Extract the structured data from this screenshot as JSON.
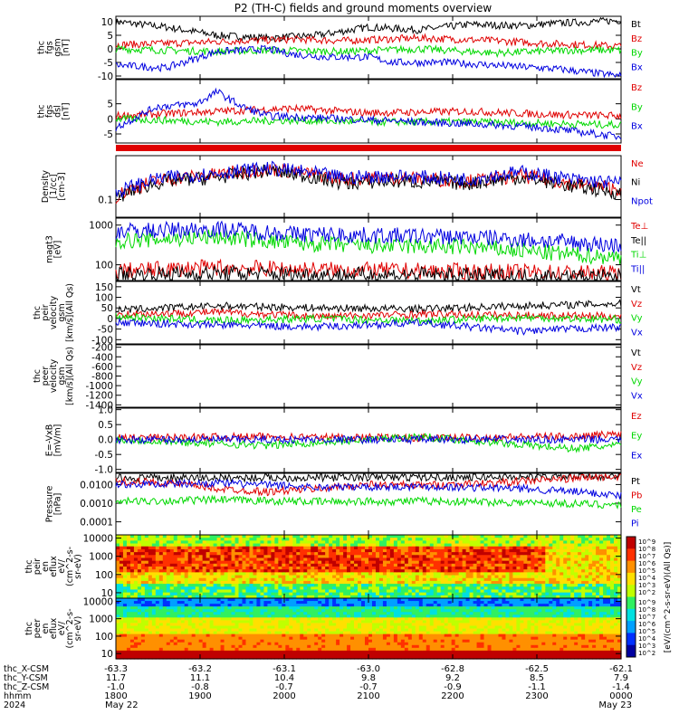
{
  "title": "P2 (TH-C) fields and ground moments overview",
  "colors": {
    "black": "#000000",
    "red": "#e00000",
    "green": "#00d800",
    "blue": "#0000e0"
  },
  "chart_data": [
    {
      "type": "line",
      "id": "fgs",
      "ylabel": [
        "thc",
        "fgs",
        "gsm",
        "[nT]"
      ],
      "yticks": [
        "10",
        "5",
        "0",
        "-5",
        "-10"
      ],
      "ylim": [
        -11,
        12
      ],
      "series": [
        {
          "name": "Bt",
          "color": "black",
          "profile": [
            [
              0,
              10
            ],
            [
              0.1,
              8
            ],
            [
              0.2,
              5
            ],
            [
              0.3,
              4
            ],
            [
              0.4,
              5
            ],
            [
              0.5,
              8
            ],
            [
              0.6,
              7
            ],
            [
              0.7,
              9
            ],
            [
              0.8,
              8.5
            ],
            [
              0.88,
              9.5
            ],
            [
              1,
              10.5
            ]
          ]
        },
        {
          "name": "Bz",
          "color": "red",
          "profile": [
            [
              0,
              1.5
            ],
            [
              0.1,
              2
            ],
            [
              0.25,
              3
            ],
            [
              0.35,
              3.5
            ],
            [
              0.45,
              3
            ],
            [
              0.6,
              4
            ],
            [
              0.75,
              3
            ],
            [
              0.85,
              2
            ],
            [
              1,
              1
            ]
          ]
        },
        {
          "name": "By",
          "color": "green",
          "profile": [
            [
              0,
              0
            ],
            [
              0.2,
              -1
            ],
            [
              0.3,
              -0.5
            ],
            [
              0.45,
              -1
            ],
            [
              0.6,
              0
            ],
            [
              0.75,
              -1.5
            ],
            [
              0.9,
              -0.5
            ],
            [
              1,
              -0.5
            ]
          ]
        },
        {
          "name": "Bx",
          "color": "blue",
          "profile": [
            [
              0,
              -6
            ],
            [
              0.1,
              -7
            ],
            [
              0.2,
              -1
            ],
            [
              0.3,
              0
            ],
            [
              0.35,
              -2
            ],
            [
              0.42,
              -3
            ],
            [
              0.5,
              -3
            ],
            [
              0.55,
              -5
            ],
            [
              0.65,
              -5
            ],
            [
              0.75,
              -6
            ],
            [
              0.88,
              -7.5
            ],
            [
              1,
              -10
            ]
          ]
        }
      ]
    },
    {
      "type": "line",
      "id": "fgs_dsl",
      "ylabel": [
        "thc",
        "fgs",
        "dsl",
        "[nT]"
      ],
      "yticks": [
        "5",
        "0",
        "-5"
      ],
      "ylim": [
        -8,
        13
      ],
      "series": [
        {
          "name": "Bz",
          "color": "red",
          "profile": [
            [
              0,
              1
            ],
            [
              0.2,
              2.5
            ],
            [
              0.35,
              3.5
            ],
            [
              0.5,
              2
            ],
            [
              0.7,
              2.5
            ],
            [
              0.85,
              1.5
            ],
            [
              1,
              1
            ]
          ]
        },
        {
          "name": "By",
          "color": "green",
          "profile": [
            [
              0,
              0
            ],
            [
              0.2,
              -1
            ],
            [
              0.35,
              -0.5
            ],
            [
              0.5,
              -1
            ],
            [
              0.7,
              -1
            ],
            [
              0.85,
              -1.5
            ],
            [
              1,
              -2
            ]
          ]
        },
        {
          "name": "Bx",
          "color": "blue",
          "profile": [
            [
              0,
              -3
            ],
            [
              0.08,
              4
            ],
            [
              0.16,
              5
            ],
            [
              0.2,
              9
            ],
            [
              0.25,
              4
            ],
            [
              0.3,
              1
            ],
            [
              0.45,
              0
            ],
            [
              0.6,
              -1
            ],
            [
              0.75,
              -2
            ],
            [
              0.85,
              -3
            ],
            [
              1,
              -6
            ]
          ]
        }
      ]
    },
    {
      "type": "line",
      "id": "density",
      "ylabel": [
        "Density",
        "[1/cc]",
        "[cm-3]"
      ],
      "yticks": [
        "0.1"
      ],
      "log": true,
      "ylim": [
        0.03,
        2
      ],
      "series": [
        {
          "name": "Ne",
          "color": "red",
          "profile": [
            [
              0,
              0.12
            ],
            [
              0.1,
              0.4
            ],
            [
              0.2,
              0.55
            ],
            [
              0.3,
              0.8
            ],
            [
              0.45,
              0.4
            ],
            [
              0.55,
              0.45
            ],
            [
              0.7,
              0.35
            ],
            [
              0.8,
              0.5
            ],
            [
              0.9,
              0.3
            ],
            [
              1,
              0.2
            ]
          ]
        },
        {
          "name": "Ni",
          "color": "black",
          "profile": [
            [
              0,
              0.1
            ],
            [
              0.1,
              0.35
            ],
            [
              0.2,
              0.45
            ],
            [
              0.3,
              0.7
            ],
            [
              0.45,
              0.3
            ],
            [
              0.55,
              0.35
            ],
            [
              0.7,
              0.3
            ],
            [
              0.8,
              0.45
            ],
            [
              0.9,
              0.25
            ],
            [
              1,
              0.15
            ]
          ]
        },
        {
          "name": "Npot",
          "color": "blue",
          "profile": [
            [
              0,
              0.15
            ],
            [
              0.1,
              0.45
            ],
            [
              0.2,
              0.6
            ],
            [
              0.3,
              0.85
            ],
            [
              0.45,
              0.45
            ],
            [
              0.55,
              0.5
            ],
            [
              0.7,
              0.4
            ],
            [
              0.8,
              0.65
            ],
            [
              0.9,
              0.4
            ],
            [
              1,
              0.3
            ]
          ]
        }
      ]
    },
    {
      "type": "line",
      "id": "temp",
      "ylabel": [
        "magt3",
        "[eV]"
      ],
      "yticks": [
        "1000",
        "100"
      ],
      "log": true,
      "ylim": [
        40,
        1500
      ],
      "series": [
        {
          "name": "Te⊥",
          "color": "red",
          "profile": [
            [
              0,
              70
            ],
            [
              0.2,
              85
            ],
            [
              0.4,
              75
            ],
            [
              0.6,
              70
            ],
            [
              0.8,
              65
            ],
            [
              1,
              60
            ]
          ]
        },
        {
          "name": "Te||",
          "color": "black",
          "profile": [
            [
              0,
              55
            ],
            [
              0.2,
              60
            ],
            [
              0.4,
              55
            ],
            [
              0.6,
              55
            ],
            [
              0.8,
              50
            ],
            [
              1,
              48
            ]
          ]
        },
        {
          "name": "Ti⊥",
          "color": "green",
          "profile": [
            [
              0,
              400
            ],
            [
              0.2,
              500
            ],
            [
              0.35,
              350
            ],
            [
              0.5,
              300
            ],
            [
              0.7,
              280
            ],
            [
              0.85,
              200
            ],
            [
              1,
              150
            ]
          ]
        },
        {
          "name": "Ti||",
          "color": "blue",
          "profile": [
            [
              0,
              700
            ],
            [
              0.2,
              800
            ],
            [
              0.35,
              600
            ],
            [
              0.5,
              550
            ],
            [
              0.7,
              500
            ],
            [
              0.85,
              400
            ],
            [
              1,
              300
            ]
          ]
        }
      ]
    },
    {
      "type": "line",
      "id": "peir_v",
      "ylabel": [
        "thc",
        "peir",
        "velocity",
        "gsm",
        "[km/s](All Qs)"
      ],
      "yticks": [
        "150",
        "100",
        "50",
        "0",
        "-50",
        "-100"
      ],
      "ylim": [
        -120,
        175
      ],
      "series": [
        {
          "name": "Vt",
          "color": "black",
          "profile": [
            [
              0,
              40
            ],
            [
              0.2,
              60
            ],
            [
              0.4,
              50
            ],
            [
              0.6,
              45
            ],
            [
              0.8,
              60
            ],
            [
              1,
              70
            ]
          ]
        },
        {
          "name": "Vz",
          "color": "red",
          "profile": [
            [
              0,
              20
            ],
            [
              0.2,
              30
            ],
            [
              0.4,
              10
            ],
            [
              0.6,
              20
            ],
            [
              0.8,
              15
            ],
            [
              1,
              10
            ]
          ]
        },
        {
          "name": "Vy",
          "color": "green",
          "profile": [
            [
              0,
              10
            ],
            [
              0.2,
              -10
            ],
            [
              0.4,
              0
            ],
            [
              0.6,
              -10
            ],
            [
              0.8,
              5
            ],
            [
              1,
              -5
            ]
          ]
        },
        {
          "name": "Vx",
          "color": "blue",
          "profile": [
            [
              0,
              -20
            ],
            [
              0.2,
              -30
            ],
            [
              0.4,
              -40
            ],
            [
              0.6,
              -20
            ],
            [
              0.8,
              -60
            ],
            [
              1,
              -40
            ]
          ]
        }
      ]
    },
    {
      "type": "line",
      "id": "peer_v",
      "ylabel": [
        "thc",
        "peer",
        "velocity",
        "gsm",
        "[km/s](All Qs)"
      ],
      "yticks": [
        "-200",
        "-400",
        "-600",
        "-800",
        "-1000",
        "-1200",
        "-1400"
      ],
      "ylim": [
        -1450,
        -150
      ],
      "series": [
        {
          "name": "Vt",
          "color": "black"
        },
        {
          "name": "Vz",
          "color": "red"
        },
        {
          "name": "Vy",
          "color": "green"
        },
        {
          "name": "Vx",
          "color": "blue"
        }
      ]
    },
    {
      "type": "line",
      "id": "efield",
      "ylabel": [
        "E=-VxB",
        "[mV/m]"
      ],
      "yticks": [
        "1.0",
        "0.5",
        "0.0",
        "-0.5",
        "-1.0"
      ],
      "ylim": [
        -1.1,
        1.05
      ],
      "series": [
        {
          "name": "Ez",
          "color": "red",
          "profile": [
            [
              0,
              0.05
            ],
            [
              0.3,
              0.1
            ],
            [
              0.6,
              0.05
            ],
            [
              0.9,
              0.1
            ],
            [
              1,
              0.2
            ]
          ]
        },
        {
          "name": "Ey",
          "color": "green",
          "profile": [
            [
              0,
              0
            ],
            [
              0.3,
              -0.2
            ],
            [
              0.6,
              0.1
            ],
            [
              0.9,
              -0.3
            ],
            [
              1,
              -0.2
            ]
          ]
        },
        {
          "name": "Ex",
          "color": "blue",
          "profile": [
            [
              0,
              0
            ],
            [
              0.3,
              0
            ],
            [
              0.6,
              0
            ],
            [
              1,
              0
            ]
          ]
        }
      ]
    },
    {
      "type": "line",
      "id": "pressure",
      "ylabel": [
        "Pressure",
        "[nPa]"
      ],
      "yticks": [
        "0.0100",
        "0.0010",
        "0.0001"
      ],
      "log": true,
      "ylim": [
        2e-05,
        0.04
      ],
      "series": [
        {
          "name": "Pt",
          "color": "black",
          "profile": [
            [
              0,
              0.022
            ],
            [
              0.5,
              0.024
            ],
            [
              0.85,
              0.026
            ],
            [
              1,
              0.03
            ]
          ]
        },
        {
          "name": "Pb",
          "color": "red",
          "profile": [
            [
              0,
              0.015
            ],
            [
              0.1,
              0.012
            ],
            [
              0.2,
              0.006
            ],
            [
              0.3,
              0.004
            ],
            [
              0.4,
              0.006
            ],
            [
              0.5,
              0.01
            ],
            [
              0.6,
              0.009
            ],
            [
              0.75,
              0.012
            ],
            [
              0.88,
              0.02
            ],
            [
              1,
              0.028
            ]
          ]
        },
        {
          "name": "Pe",
          "color": "green",
          "profile": [
            [
              0,
              0.0012
            ],
            [
              0.2,
              0.0015
            ],
            [
              0.4,
              0.0012
            ],
            [
              0.6,
              0.0013
            ],
            [
              0.8,
              0.0011
            ],
            [
              1,
              0.0008
            ]
          ]
        },
        {
          "name": "Pi",
          "color": "blue",
          "profile": [
            [
              0,
              0.01
            ],
            [
              0.2,
              0.012
            ],
            [
              0.4,
              0.007
            ],
            [
              0.6,
              0.008
            ],
            [
              0.8,
              0.006
            ],
            [
              1,
              0.0025
            ]
          ]
        }
      ]
    },
    {
      "type": "heatmap",
      "id": "peir_en",
      "ylabel": [
        "thc",
        "peir",
        "en",
        "eflux",
        "eV/",
        "(cm^2-s-",
        "sr-eV)"
      ],
      "yticks": [
        "10000",
        "1000",
        "100",
        "10"
      ],
      "log": true,
      "ylim": [
        5,
        15000
      ]
    },
    {
      "type": "heatmap",
      "id": "peer_en",
      "ylabel": [
        "thc",
        "peer",
        "en",
        "eflux",
        "eV/",
        "(cm^2-s-",
        "sr-eV)"
      ],
      "yticks": [
        "10000",
        "1000",
        "100",
        "10"
      ],
      "log": true,
      "ylim": [
        5,
        15000
      ]
    }
  ],
  "colorbar": {
    "label": "[eV/(cm^2-s-sr-eV)(All Qs)]",
    "ticks": [
      "10^9",
      "10^8",
      "10^7",
      "10^6",
      "10^5",
      "10^4",
      "10^3",
      "10^2"
    ]
  },
  "colorbar2": {
    "ticks": [
      "10^9",
      "10^8",
      "10^7",
      "10^6",
      "10^5",
      "10^4",
      "10^3",
      "10^2"
    ]
  },
  "xaxis": {
    "rows": [
      {
        "label": "thc_X-CSM",
        "values": [
          "-63.3",
          "-63.2",
          "-63.1",
          "-63.0",
          "-62.8",
          "-62.5",
          "-62.1"
        ]
      },
      {
        "label": "thc_Y-CSM",
        "values": [
          "11.7",
          "11.1",
          "10.4",
          "9.8",
          "9.2",
          "8.5",
          "7.9"
        ]
      },
      {
        "label": "thc_Z-CSM",
        "values": [
          "-1.0",
          "-0.8",
          "-0.7",
          "-0.7",
          "-0.9",
          "-1.1",
          "-1.4"
        ]
      },
      {
        "label": "hhmm",
        "values": [
          "1800",
          "1900",
          "2000",
          "2100",
          "2200",
          "2300",
          "0000"
        ]
      },
      {
        "label": "2024",
        "values": [
          "May 22",
          "",
          "",
          "",
          "",
          "",
          "May 23"
        ]
      }
    ]
  }
}
